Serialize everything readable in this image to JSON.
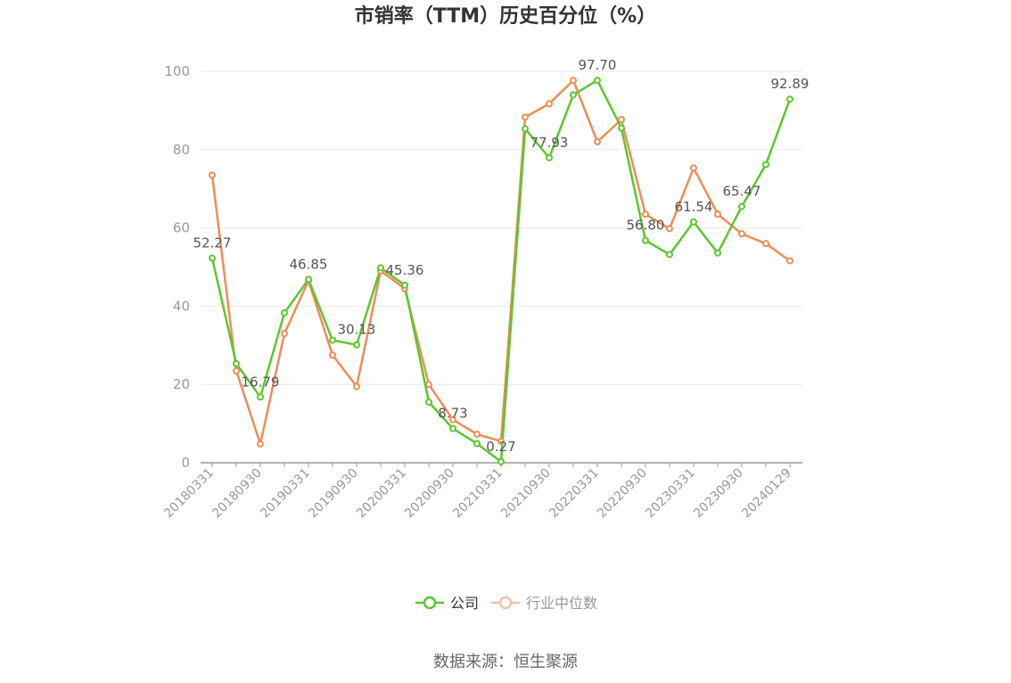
{
  "chart_data": {
    "type": "line",
    "title": "市销率（TTM）历史百分位（%）",
    "source": "数据来源：恒生聚源",
    "ylim": [
      0,
      100
    ],
    "yticks": [
      0,
      20,
      40,
      60,
      80,
      100
    ],
    "grid": true,
    "legend_position": "bottom",
    "x_tick_labels": [
      "20180331",
      "20180930",
      "20190331",
      "20190930",
      "20200331",
      "20200930",
      "20210331",
      "20210930",
      "20220331",
      "20220930",
      "20230331",
      "20230930",
      "20240129"
    ],
    "x": [
      "20180331",
      "20180630",
      "20180930",
      "20181231",
      "20190331",
      "20190630",
      "20190930",
      "20191231",
      "20200331",
      "20200630",
      "20200930",
      "20201231",
      "20210331",
      "20210630",
      "20210930",
      "20211231",
      "20220331",
      "20220630",
      "20220930",
      "20221231",
      "20230331",
      "20230630",
      "20230930",
      "20231231",
      "20240129"
    ],
    "series": [
      {
        "name": "公司",
        "color": "#5cc72c",
        "values": [
          52.27,
          25.3,
          16.79,
          38.3,
          46.85,
          31.3,
          30.13,
          49.8,
          45.36,
          15.5,
          8.73,
          4.9,
          0.27,
          85.3,
          77.93,
          94.0,
          97.7,
          85.5,
          56.8,
          53.2,
          61.54,
          53.6,
          65.47,
          76.2,
          92.89
        ]
      },
      {
        "name": "行业中位数",
        "color": "#f08c55",
        "values": [
          73.5,
          23.5,
          4.8,
          33.0,
          46.5,
          27.5,
          19.5,
          49.0,
          44.5,
          20.0,
          11.0,
          7.3,
          5.5,
          88.3,
          91.7,
          97.7,
          82.0,
          87.7,
          63.5,
          59.8,
          75.3,
          63.5,
          58.5,
          56.0,
          51.6
        ]
      }
    ],
    "data_labels": [
      {
        "index": 0,
        "text": "52.27"
      },
      {
        "index": 2,
        "text": "16.79"
      },
      {
        "index": 4,
        "text": "46.85"
      },
      {
        "index": 6,
        "text": "30.13"
      },
      {
        "index": 8,
        "text": "45.36"
      },
      {
        "index": 10,
        "text": "8.73"
      },
      {
        "index": 12,
        "text": "0.27"
      },
      {
        "index": 14,
        "text": "77.93"
      },
      {
        "index": 16,
        "text": "97.70"
      },
      {
        "index": 18,
        "text": "56.80"
      },
      {
        "index": 20,
        "text": "61.54"
      },
      {
        "index": 22,
        "text": "65.47"
      },
      {
        "index": 24,
        "text": "92.89"
      }
    ]
  }
}
